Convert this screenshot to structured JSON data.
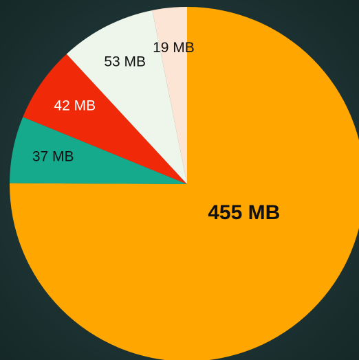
{
  "chart_data": {
    "type": "pie",
    "categories": [
      null,
      null,
      null,
      null,
      null
    ],
    "values": [
      455,
      37,
      42,
      53,
      19
    ],
    "value_labels": [
      "455 MB",
      "37 MB",
      "42 MB",
      "53 MB",
      "19 MB"
    ],
    "colors": [
      "#ffa600",
      "#16aa8c",
      "#f02a08",
      "#eef5ea",
      "#fde5d5"
    ]
  }
}
